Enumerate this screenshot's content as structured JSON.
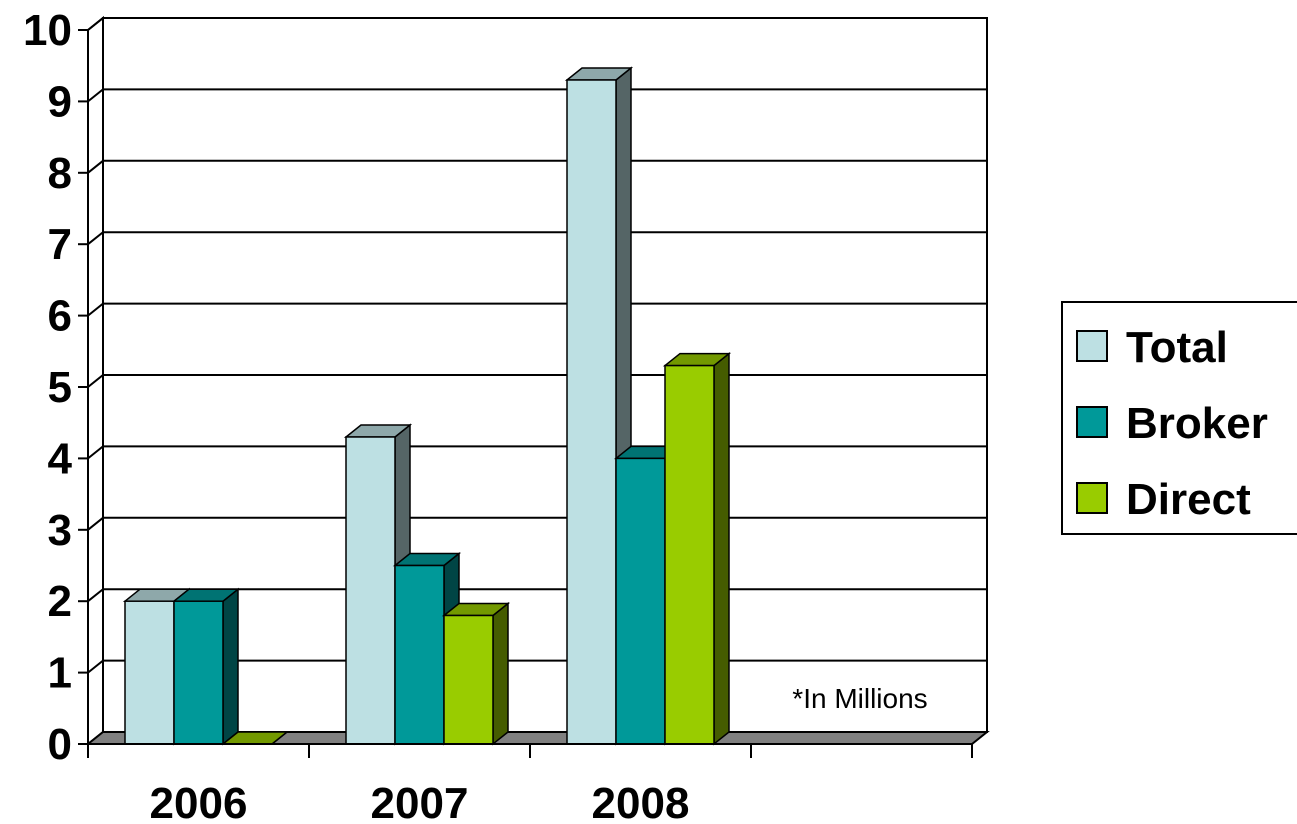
{
  "chart_data": {
    "type": "bar",
    "style": "3d-clustered-column",
    "categories": [
      "2006",
      "2007",
      "2008",
      ""
    ],
    "series": [
      {
        "name": "Total",
        "color": "#BDE0E3",
        "values": [
          2,
          4.3,
          9.3,
          null
        ]
      },
      {
        "name": "Broker",
        "color": "#009999",
        "values": [
          2,
          2.5,
          4,
          null
        ]
      },
      {
        "name": "Direct",
        "color": "#99CC00",
        "values": [
          0,
          1.8,
          5.3,
          null
        ]
      }
    ],
    "ylim": [
      0,
      10
    ],
    "yticks": [
      "0",
      "1",
      "2",
      "3",
      "4",
      "5",
      "6",
      "7",
      "8",
      "9",
      "10"
    ],
    "grid": true,
    "legend_position": "right",
    "annotation": "*In Millions",
    "title": "",
    "xlabel": "",
    "ylabel": ""
  }
}
